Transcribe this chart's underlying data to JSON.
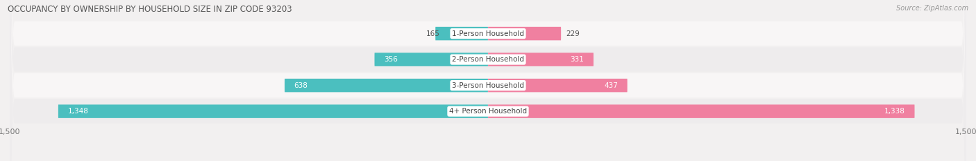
{
  "title": "OCCUPANCY BY OWNERSHIP BY HOUSEHOLD SIZE IN ZIP CODE 93203",
  "source": "Source: ZipAtlas.com",
  "categories": [
    "1-Person Household",
    "2-Person Household",
    "3-Person Household",
    "4+ Person Household"
  ],
  "owner_values": [
    165,
    356,
    638,
    1348
  ],
  "renter_values": [
    229,
    331,
    437,
    1338
  ],
  "owner_color": "#4BBFBF",
  "renter_color": "#F080A0",
  "bg_color": "#F2F0F0",
  "row_light": "#F8F6F6",
  "row_dark": "#EEECED",
  "xlim": 1500,
  "figsize": [
    14.06,
    2.33
  ],
  "dpi": 100,
  "label_color_outside": "#555555",
  "label_color_inside": "white",
  "label_color_inside_dark": "#333333"
}
